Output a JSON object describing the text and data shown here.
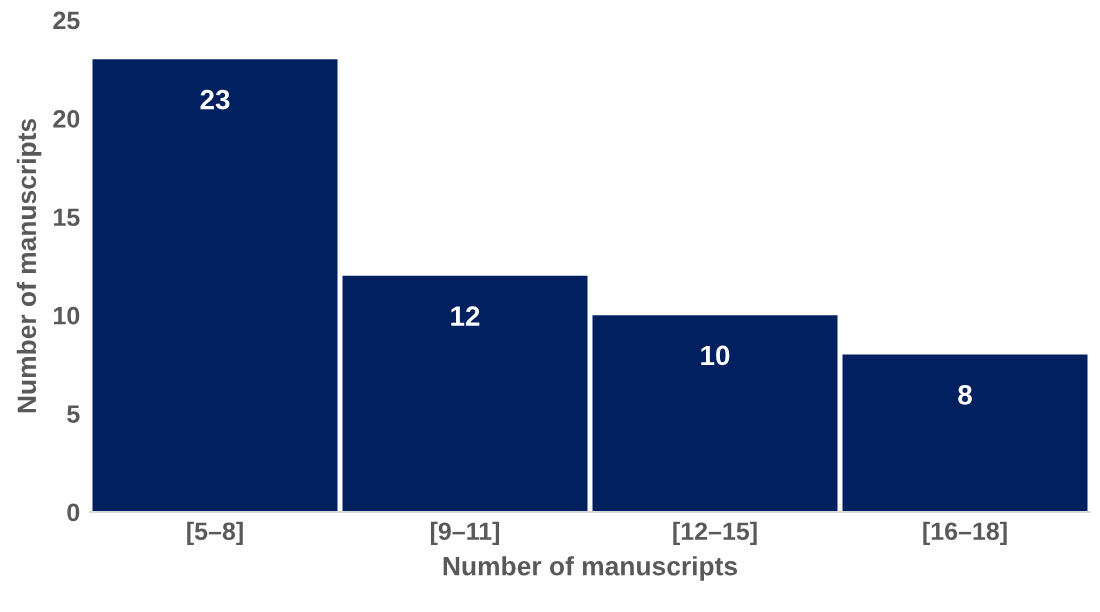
{
  "chart_data": {
    "type": "bar",
    "xlabel": "Number of manuscripts",
    "ylabel": "Number of manuscripts",
    "categories": [
      "[5–8]",
      "[9–11]",
      "[12–15]",
      "[16–18]"
    ],
    "values": [
      23,
      12,
      10,
      8
    ],
    "color": "#002060",
    "ylim": [
      0,
      25
    ],
    "yticks": [
      0,
      5,
      10,
      15,
      20,
      25
    ],
    "grid": false,
    "data_labels": true
  }
}
